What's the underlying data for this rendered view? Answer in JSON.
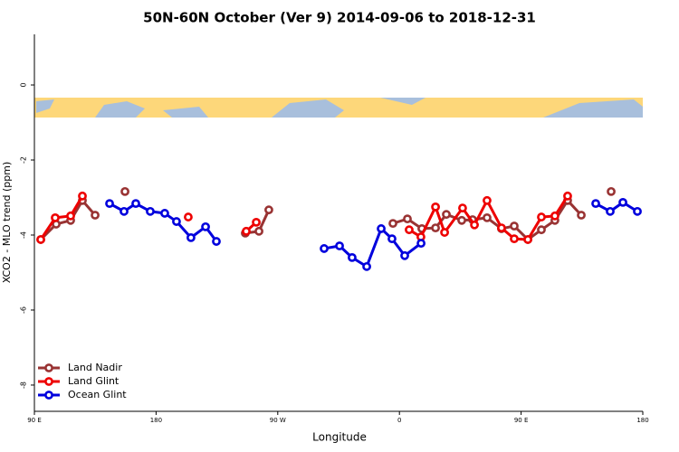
{
  "chart_data": {
    "type": "line",
    "title": "50N-60N October (Ver 9)   2014-09-06 to 2018-12-31",
    "x_label": "Longitude",
    "y_label": "XCO2 - MLO trend (ppm)",
    "xlim": [
      90,
      540
    ],
    "xticks": [
      {
        "value": 90,
        "label": "90 E"
      },
      {
        "value": 180,
        "label": "180"
      },
      {
        "value": 270,
        "label": "90 W"
      },
      {
        "value": 360,
        "label": "0"
      },
      {
        "value": 450,
        "label": "90 E"
      },
      {
        "value": 540,
        "label": "180"
      }
    ],
    "ylim": [
      -8.7,
      1.35
    ],
    "yticks": [
      0,
      -2,
      -4,
      -6,
      -8
    ],
    "legend": "bottom-left",
    "series": [
      {
        "name": "Land Nadir",
        "color": "#993333",
        "x": [
          94.7,
          106.1,
          116.8,
          125.5,
          134.9,
          null,
          157,
          null,
          246,
          256.1,
          263.4,
          null,
          355.2,
          365.9,
          376.6,
          386.7,
          394.7,
          406.1,
          414.1,
          424.8,
          435.5,
          444.9,
          455,
          465,
          475,
          484.4,
          494.5,
          null,
          516.6
        ],
        "values": [
          -4.12,
          -3.71,
          -3.61,
          -3.08,
          -3.47,
          null,
          -2.84,
          null,
          -3.95,
          -3.9,
          -3.33,
          null,
          -3.69,
          -3.57,
          -3.83,
          -3.81,
          -3.45,
          -3.61,
          -3.59,
          -3.54,
          -3.83,
          -3.76,
          -4.12,
          -3.86,
          -3.61,
          -3.08,
          -3.47,
          null,
          -2.84
        ]
      },
      {
        "name": "Land Glint",
        "color": "#ee0000",
        "x": [
          94.7,
          105.4,
          116.8,
          125.5,
          null,
          203.8,
          null,
          246.7,
          254.1,
          null,
          367.2,
          375.9,
          386.7,
          393.4,
          406.7,
          415.5,
          424.8,
          435.5,
          444.9,
          455,
          465,
          475,
          484.4
        ],
        "values": [
          -4.12,
          -3.54,
          -3.49,
          -2.96,
          null,
          -3.52,
          null,
          -3.9,
          -3.66,
          null,
          -3.86,
          -4.05,
          -3.25,
          -3.93,
          -3.28,
          -3.73,
          -3.08,
          -3.81,
          -4.1,
          -4.12,
          -3.52,
          -3.49,
          -2.96
        ]
      },
      {
        "name": "Ocean Glint",
        "color": "#0000dd",
        "x": [
          145.6,
          156.3,
          165,
          175.7,
          186.4,
          195.1,
          205.8,
          216.6,
          224.6,
          null,
          304.3,
          315.7,
          325,
          335.8,
          346.5,
          354.5,
          363.9,
          376,
          null,
          505.2,
          515.9,
          525.3,
          536
        ],
        "values": [
          -3.16,
          -3.37,
          -3.16,
          -3.37,
          -3.42,
          -3.64,
          -4.07,
          -3.78,
          -4.17,
          null,
          -4.36,
          -4.29,
          -4.6,
          -4.84,
          -3.83,
          -4.1,
          -4.55,
          -4.22,
          null,
          -3.16,
          -3.37,
          -3.13,
          -3.37
        ]
      }
    ]
  }
}
